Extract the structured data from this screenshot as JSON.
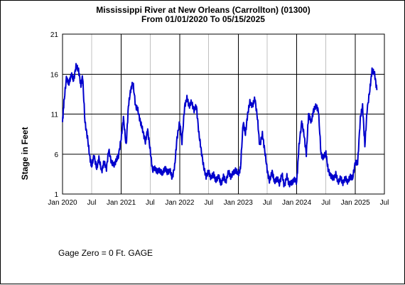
{
  "chart_data": {
    "type": "line",
    "title": "Mississippi River at New Orleans (Carrollton) (01300)",
    "subtitle": "From 01/01/2020 To 05/15/2025",
    "ylabel": "Stage in Feet",
    "xlabel": "",
    "ylim": [
      1,
      21
    ],
    "yticks": [
      1,
      6,
      11,
      16,
      21
    ],
    "xlim": [
      "2020-01-01",
      "2025-07-01"
    ],
    "xticks": [
      {
        "date": "2020-01-01",
        "label": "Jan 2020",
        "major": true
      },
      {
        "date": "2020-07-01",
        "label": "Jul",
        "major": false
      },
      {
        "date": "2021-01-01",
        "label": "Jan 2021",
        "major": true
      },
      {
        "date": "2021-07-01",
        "label": "Jul",
        "major": false
      },
      {
        "date": "2022-01-01",
        "label": "Jan 2022",
        "major": true
      },
      {
        "date": "2022-07-01",
        "label": "Jul",
        "major": false
      },
      {
        "date": "2023-01-01",
        "label": "Jan 2023",
        "major": true
      },
      {
        "date": "2023-07-01",
        "label": "Jul",
        "major": false
      },
      {
        "date": "2024-01-01",
        "label": "Jan 2024",
        "major": true
      },
      {
        "date": "2024-07-01",
        "label": "Jul",
        "major": false
      },
      {
        "date": "2025-01-01",
        "label": "Jan 2025",
        "major": true
      },
      {
        "date": "2025-07-01",
        "label": "Jul",
        "major": false
      }
    ],
    "grid": true,
    "colors": {
      "series": "#0000cc",
      "major_grid": "#000000",
      "minor_grid": "#c0c0c0"
    },
    "series": [
      {
        "x": [
          "2020-01-01",
          "2020-01-10",
          "2020-01-25",
          "2020-02-10",
          "2020-02-25",
          "2020-03-10",
          "2020-03-25",
          "2020-04-10",
          "2020-04-25",
          "2020-05-05",
          "2020-05-20",
          "2020-06-05",
          "2020-06-20",
          "2020-07-01",
          "2020-07-15",
          "2020-08-01",
          "2020-08-15",
          "2020-09-01",
          "2020-09-15",
          "2020-10-01",
          "2020-10-15",
          "2020-11-01",
          "2020-11-15",
          "2020-12-01",
          "2020-12-15",
          "2021-01-01",
          "2021-01-15",
          "2021-02-01",
          "2021-02-15",
          "2021-03-01",
          "2021-03-15",
          "2021-04-01",
          "2021-04-15",
          "2021-05-01",
          "2021-05-15",
          "2021-06-01",
          "2021-06-15",
          "2021-07-01",
          "2021-07-15",
          "2021-08-01",
          "2021-08-15",
          "2021-09-01",
          "2021-09-15",
          "2021-10-01",
          "2021-10-15",
          "2021-11-01",
          "2021-11-15",
          "2021-12-01",
          "2021-12-15",
          "2022-01-01",
          "2022-01-15",
          "2022-02-01",
          "2022-02-15",
          "2022-03-01",
          "2022-03-15",
          "2022-04-01",
          "2022-04-15",
          "2022-05-01",
          "2022-05-15",
          "2022-06-01",
          "2022-06-15",
          "2022-07-01",
          "2022-07-15",
          "2022-08-01",
          "2022-08-15",
          "2022-09-01",
          "2022-09-15",
          "2022-10-01",
          "2022-10-15",
          "2022-11-01",
          "2022-11-15",
          "2022-12-01",
          "2022-12-15",
          "2023-01-01",
          "2023-01-15",
          "2023-02-01",
          "2023-02-15",
          "2023-03-01",
          "2023-03-15",
          "2023-04-01",
          "2023-04-15",
          "2023-05-01",
          "2023-05-15",
          "2023-06-01",
          "2023-06-15",
          "2023-07-01",
          "2023-07-15",
          "2023-08-01",
          "2023-08-15",
          "2023-09-01",
          "2023-09-15",
          "2023-10-01",
          "2023-10-15",
          "2023-11-01",
          "2023-11-15",
          "2023-12-01",
          "2023-12-15",
          "2024-01-01",
          "2024-01-15",
          "2024-02-01",
          "2024-02-15",
          "2024-03-01",
          "2024-03-15",
          "2024-04-01",
          "2024-04-15",
          "2024-05-01",
          "2024-05-15",
          "2024-06-01",
          "2024-06-15",
          "2024-07-01",
          "2024-07-15",
          "2024-08-01",
          "2024-08-15",
          "2024-09-01",
          "2024-09-15",
          "2024-10-01",
          "2024-10-15",
          "2024-11-01",
          "2024-11-15",
          "2024-12-01",
          "2024-12-15",
          "2025-01-01",
          "2025-01-15",
          "2025-02-01",
          "2025-02-15",
          "2025-03-01",
          "2025-03-15",
          "2025-04-01",
          "2025-04-15",
          "2025-05-01",
          "2025-05-15"
        ],
        "y": [
          10.0,
          12.5,
          15.5,
          14.8,
          16.0,
          15.2,
          17.0,
          16.5,
          14.5,
          15.8,
          10.0,
          8.0,
          5.5,
          4.5,
          5.8,
          4.2,
          5.5,
          3.8,
          5.0,
          4.2,
          6.5,
          5.0,
          4.6,
          5.2,
          5.8,
          8.0,
          10.5,
          7.0,
          12.0,
          14.0,
          15.0,
          12.0,
          11.5,
          10.0,
          9.0,
          7.5,
          9.0,
          6.5,
          4.0,
          4.2,
          3.8,
          4.0,
          3.5,
          4.3,
          3.7,
          4.0,
          3.0,
          4.5,
          8.0,
          10.0,
          7.5,
          12.0,
          13.0,
          12.0,
          12.5,
          11.5,
          12.0,
          8.5,
          6.5,
          4.2,
          3.2,
          3.8,
          3.0,
          3.5,
          2.6,
          3.3,
          2.2,
          3.2,
          2.5,
          3.8,
          3.2,
          3.6,
          4.0,
          3.5,
          4.2,
          10.0,
          8.5,
          11.0,
          12.5,
          12.0,
          13.0,
          10.5,
          7.0,
          8.5,
          6.5,
          4.0,
          2.6,
          3.8,
          2.5,
          3.0,
          2.3,
          3.5,
          2.0,
          3.2,
          2.2,
          2.4,
          2.8,
          2.5,
          7.0,
          10.0,
          8.5,
          6.0,
          11.0,
          10.0,
          11.5,
          12.0,
          11.5,
          6.0,
          5.5,
          6.2,
          4.0,
          3.3,
          2.9,
          3.5,
          2.5,
          3.0,
          2.4,
          3.0,
          2.5,
          3.2,
          3.0,
          5.0,
          4.8,
          10.5,
          12.0,
          7.0,
          11.5,
          14.0,
          16.5,
          16.0,
          14.0
        ]
      }
    ]
  },
  "footnote": "Gage Zero = 0 Ft. GAGE"
}
